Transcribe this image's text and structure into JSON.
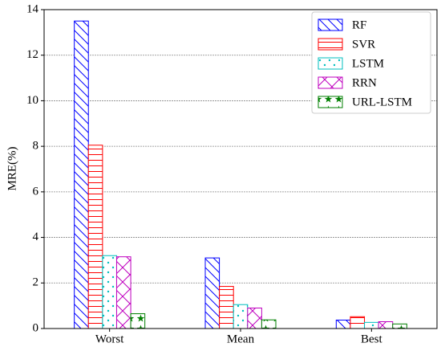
{
  "chart_data": {
    "type": "bar",
    "y_label": "MRE(%)",
    "categories": [
      "Worst",
      "Mean",
      "Best"
    ],
    "series": [
      {
        "name": "RF",
        "color": "#0000ff",
        "hatch": "\\",
        "values": [
          13.5,
          3.1,
          0.37
        ]
      },
      {
        "name": "SVR",
        "color": "#ff0000",
        "hatch": "-",
        "values": [
          8.05,
          1.85,
          0.52
        ]
      },
      {
        "name": "LSTM",
        "color": "#00bfbf",
        "hatch": ".",
        "values": [
          3.2,
          1.05,
          0.27
        ]
      },
      {
        "name": "RRN",
        "color": "#bf00bf",
        "hatch": "x",
        "values": [
          3.15,
          0.9,
          0.3
        ]
      },
      {
        "name": "URL-LSTM",
        "color": "#007f00",
        "hatch": "*",
        "values": [
          0.65,
          0.38,
          0.2
        ]
      }
    ],
    "ylim": [
      0,
      14
    ],
    "yticks": [
      0,
      2,
      4,
      6,
      8,
      10,
      12,
      14
    ],
    "grid": true,
    "legend": "upper right"
  }
}
